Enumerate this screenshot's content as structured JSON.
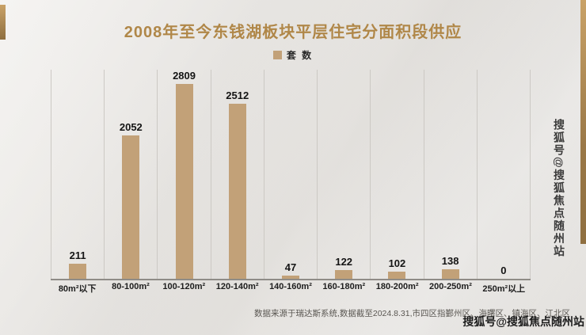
{
  "page": {
    "title": "2008年至今东钱湖板块平层住宅分面积段供应",
    "footer": "数据来源于瑞达斯系统,数据截至2024.8.31,市四区指鄞州区、海曙区、镇海区、江北区",
    "watermark": "搜狐号@搜狐焦点随州站"
  },
  "legend": {
    "label": "套 数",
    "color": "#c2a178"
  },
  "chart_data": {
    "type": "bar",
    "title": "2008年至今东钱湖板块平层住宅分面积段供应",
    "categories": [
      "80m²以下",
      "80-100m²",
      "100-120m²",
      "120-140m²",
      "140-160m²",
      "160-180m²",
      "180-200m²",
      "200-250m²",
      "250m²以上"
    ],
    "values": [
      211,
      2052,
      2809,
      2512,
      47,
      122,
      102,
      138,
      0
    ],
    "series": [
      {
        "name": "套 数",
        "values": [
          211,
          2052,
          2809,
          2512,
          47,
          122,
          102,
          138,
          0
        ]
      }
    ],
    "xlabel": "",
    "ylabel": "",
    "ylim": [
      0,
      3000
    ],
    "grid": "vertical-dividers-only",
    "legend_position": "top-center",
    "bar_color": "#c2a178",
    "value_labels": true
  },
  "colors": {
    "background": "#e9e7e4",
    "title": "#b08748",
    "bar": "#c2a178",
    "accent_strip": "#a8824e",
    "baseline": "#8f8c87",
    "divider": "#ccc9c4"
  }
}
